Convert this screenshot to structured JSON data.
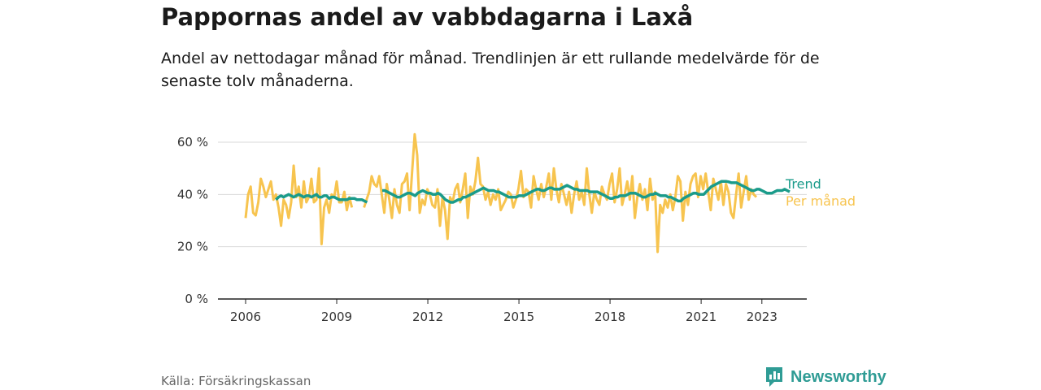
{
  "header": {
    "title": "Pappornas andel av vabbdagarna i Laxå",
    "subtitle": "Andel av nettodagar månad för månad. Trendlinjen är ett rullande medelvärde för de senaste tolv månaderna."
  },
  "footer": {
    "source": "Källa: Försäkringskassan",
    "logo_text": "Newsworthy"
  },
  "colors": {
    "trend": "#1a9b8a",
    "monthly": "#f7c44f",
    "grid": "#d9d9d9",
    "axis": "#222222",
    "brand": "#2f9c95"
  },
  "chart_data": {
    "type": "line",
    "x_unit": "year",
    "xlim": [
      2006,
      2024.2
    ],
    "ylim": [
      0,
      65
    ],
    "x_ticks": [
      "2006",
      "2009",
      "2012",
      "2015",
      "2018",
      "2021",
      "2023"
    ],
    "y_ticks": [
      "0 %",
      "20 %",
      "40 %",
      "60 %"
    ],
    "grid": true,
    "series": [
      {
        "name": "Per månad",
        "start": 2006.0,
        "step": "month",
        "values": [
          31,
          40,
          43,
          33,
          32,
          37,
          46,
          43,
          39,
          42,
          45,
          38,
          40,
          35,
          28,
          38,
          36,
          31,
          37,
          51,
          39,
          43,
          35,
          45,
          37,
          39,
          46,
          37,
          38,
          50,
          21,
          35,
          38,
          33,
          40,
          39,
          45,
          37,
          37,
          41,
          34,
          39,
          35,
          null,
          null,
          null,
          null,
          null,
          null,
          null,
          null,
          null,
          null,
          null,
          null,
          null,
          null,
          null,
          null,
          null,
          null,
          null,
          null,
          null,
          null,
          null,
          null,
          null,
          null,
          null,
          null,
          null,
          null,
          null,
          null,
          null,
          null,
          null,
          null,
          null,
          null,
          null,
          null,
          null,
          null,
          null,
          null,
          null,
          null,
          null,
          null,
          null,
          null,
          null,
          null,
          null,
          null,
          null,
          null,
          null,
          null,
          null,
          null,
          null,
          null,
          null,
          null,
          null,
          null,
          null,
          null,
          null,
          null,
          null,
          null,
          null,
          null,
          null,
          null,
          null,
          null,
          null,
          null,
          null,
          null,
          null,
          null,
          null,
          null,
          null,
          null,
          null,
          null,
          null,
          null,
          null,
          null,
          null,
          null,
          null,
          null,
          null,
          null,
          null,
          null,
          null,
          null,
          null,
          null,
          null,
          null,
          null,
          null,
          null,
          null,
          null,
          null,
          null,
          null,
          null,
          null,
          null,
          null,
          null,
          null,
          null,
          null,
          null,
          null,
          null,
          null,
          null,
          null,
          null,
          null,
          null,
          null,
          null,
          null,
          null,
          null,
          null,
          null,
          null,
          null,
          null,
          null,
          null,
          null,
          null,
          null,
          null,
          null,
          null,
          null,
          null,
          null,
          null,
          null,
          null,
          null,
          null,
          null,
          null,
          null,
          null,
          null,
          null,
          null,
          null,
          null,
          null,
          null,
          null,
          null,
          null,
          null,
          null,
          null,
          null,
          null,
          null,
          null,
          null,
          null,
          null,
          null,
          null,
          null,
          null,
          null,
          null,
          null,
          null,
          null,
          null,
          null,
          null,
          null,
          null,
          null,
          null,
          null,
          null,
          null
        ],
        "values_2nd_segment": {
          "start": 2009.9,
          "step": "month",
          "values": [
            35,
            38,
            41,
            47,
            44,
            43,
            47,
            40,
            33,
            44,
            38,
            31,
            42,
            36,
            33,
            44,
            45,
            48,
            34,
            49,
            63,
            55,
            33,
            38,
            36,
            42,
            40,
            36,
            35,
            42,
            28,
            39,
            34,
            23,
            39,
            37,
            42,
            44,
            37,
            42,
            48,
            31,
            43,
            40,
            45,
            54,
            44,
            43,
            38,
            41,
            36,
            40,
            38,
            42,
            34,
            36,
            38,
            41,
            40,
            35,
            38,
            42,
            49,
            39,
            42,
            41,
            35,
            47,
            42,
            38,
            44,
            39,
            43,
            48,
            38,
            50,
            42,
            37,
            44,
            40,
            36,
            41,
            33,
            40,
            45,
            38,
            41,
            36,
            50,
            40,
            33,
            41,
            38,
            36,
            43,
            40,
            38,
            44,
            48,
            37,
            42,
            50,
            36,
            40,
            45,
            38,
            47,
            31,
            39,
            44,
            38,
            42,
            34,
            46,
            38,
            41,
            18,
            36,
            33,
            38,
            35,
            40,
            34,
            39,
            47,
            45,
            30,
            41,
            36,
            44,
            47,
            48,
            39,
            47,
            42,
            48,
            41,
            34,
            46,
            42,
            38,
            45,
            36,
            44,
            41,
            33,
            31,
            40,
            48,
            35,
            41,
            47,
            38,
            42,
            40,
            39
          ]
        }
      },
      {
        "name": "Trend",
        "segments": [
          {
            "start": 2007.0,
            "step": "month",
            "values": [
              38,
              39,
              39.5,
              39,
              39.5,
              40,
              39.5,
              39,
              39.5,
              40,
              39.5,
              39,
              39.5,
              39.5,
              39,
              39.5,
              40,
              39,
              39,
              39.5,
              39.5,
              38.5,
              39,
              39,
              38.5,
              38,
              38,
              38,
              38,
              38.5,
              38.5,
              38.5,
              38,
              38,
              38,
              37.5,
              37
            ]
          },
          {
            "start": 2010.5,
            "step": "month",
            "values": [
              41.5,
              41.5,
              41,
              40.5,
              40,
              39.5,
              39,
              39,
              39.5,
              40,
              40.5,
              40.5,
              40,
              39.5,
              40.5,
              41,
              41.5,
              41,
              40.5,
              40.5,
              40,
              40,
              40.5,
              40,
              39,
              38,
              37.5,
              37,
              37,
              37.5,
              38,
              38,
              39,
              39,
              39.5,
              40,
              40.5,
              41,
              41.5,
              42,
              42.5,
              42,
              41.5,
              41.5,
              41.5,
              41,
              41,
              40.5,
              40,
              39.5,
              39,
              39,
              39,
              39,
              39.5,
              39.5,
              39.5,
              40,
              40.5,
              41,
              41.5,
              42,
              42,
              41.5,
              41.5,
              42,
              42.5,
              42.5,
              42,
              42,
              42,
              42.5,
              43,
              43.5,
              43,
              42.5,
              42,
              42,
              41.5,
              41.5,
              41.5,
              41.5,
              41,
              41,
              41,
              41,
              40.5,
              40,
              39.5,
              39,
              38.5,
              38.5,
              39,
              39,
              39.5,
              39.5,
              39.5,
              40,
              40.5,
              40.5,
              40.5,
              40,
              39.5,
              39,
              39,
              39.5,
              40,
              40,
              40.5,
              40,
              39.5,
              39.5,
              39.5,
              39,
              39,
              38.5,
              38,
              37.5,
              37.5,
              38.5,
              39,
              39.5,
              40,
              40.5,
              40.5,
              40,
              40,
              40,
              41,
              42,
              43,
              43.5,
              44,
              44.5,
              45,
              45,
              45,
              44.8,
              44.5,
              44.5,
              44.5,
              44,
              43.5,
              43,
              42.5,
              42,
              41.5,
              41.5,
              42,
              42,
              41.5,
              41,
              40.5,
              40.5,
              40.5,
              41,
              41.5,
              41.5,
              41.5,
              42,
              41.5,
              41
            ]
          }
        ]
      }
    ]
  },
  "labels": {
    "trend": "Trend",
    "monthly": "Per månad"
  }
}
